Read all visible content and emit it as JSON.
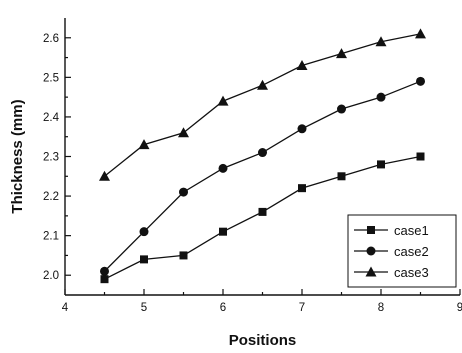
{
  "chart_data": {
    "type": "line",
    "title": "",
    "xlabel": "Positions",
    "ylabel": "Thickness (mm)",
    "xlim": [
      4,
      9
    ],
    "ylim": [
      1.95,
      2.65
    ],
    "xticks": [
      4,
      5,
      6,
      7,
      8,
      9
    ],
    "xtick_labels": [
      "4",
      "5",
      "6",
      "7",
      "8",
      "9"
    ],
    "yticks": [
      2.0,
      2.1,
      2.2,
      2.3,
      2.4,
      2.5,
      2.6
    ],
    "ytick_labels": [
      "2.0",
      "2.1",
      "2.2",
      "2.3",
      "2.4",
      "2.5",
      "2.6"
    ],
    "x": [
      4.5,
      5.0,
      5.5,
      6.0,
      6.5,
      7.0,
      7.5,
      8.0,
      8.5
    ],
    "series": [
      {
        "name": "case1",
        "marker": "square",
        "values": [
          1.99,
          2.04,
          2.05,
          2.11,
          2.16,
          2.22,
          2.25,
          2.28,
          2.3
        ]
      },
      {
        "name": "case2",
        "marker": "circle",
        "values": [
          2.01,
          2.11,
          2.21,
          2.27,
          2.31,
          2.37,
          2.42,
          2.45,
          2.49
        ]
      },
      {
        "name": "case3",
        "marker": "triangle",
        "values": [
          2.25,
          2.33,
          2.36,
          2.44,
          2.48,
          2.53,
          2.56,
          2.59,
          2.61
        ]
      }
    ],
    "legend_position": "bottom-right",
    "grid": false
  }
}
